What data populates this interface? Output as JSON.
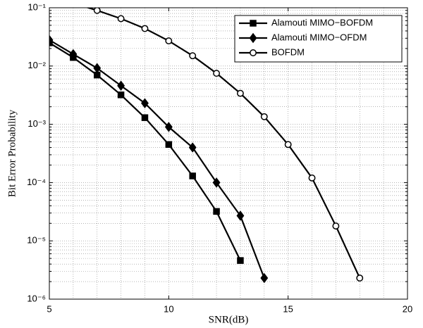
{
  "chart_data": {
    "type": "line",
    "log_y": true,
    "grid": true,
    "legend": "upper right",
    "xlabel": "SNR(dB)",
    "ylabel": "Bit Error Probability",
    "xlim": [
      5,
      20
    ],
    "xticks": [
      5,
      10,
      15,
      20
    ],
    "ylim": [
      1e-06,
      0.1
    ],
    "yticks": [
      {
        "value": 0.1,
        "label": "10⁻¹"
      },
      {
        "value": 0.01,
        "label": "10⁻²"
      },
      {
        "value": 0.001,
        "label": "10⁻³"
      },
      {
        "value": 0.0001,
        "label": "10⁻⁴"
      },
      {
        "value": 1e-05,
        "label": "10⁻⁵"
      },
      {
        "value": 1e-06,
        "label": "10⁻⁶"
      }
    ],
    "series": [
      {
        "name": "Alamouti MIMO−BOFDM",
        "color": "#000000",
        "marker": "square",
        "x": [
          5,
          6,
          7,
          8,
          9,
          10,
          11,
          12,
          13
        ],
        "values": [
          0.025,
          0.014,
          0.007,
          0.0032,
          0.0013,
          0.00045,
          0.00013,
          3.2e-05,
          4.6e-06
        ]
      },
      {
        "name": "Alamouti MIMO−OFDM",
        "color": "#000000",
        "marker": "diamond",
        "x": [
          5,
          6,
          7,
          8,
          9,
          10,
          11,
          12,
          13,
          14
        ],
        "values": [
          0.028,
          0.016,
          0.0092,
          0.0046,
          0.0023,
          0.0009,
          0.0004,
          0.0001,
          2.7e-05,
          2.3e-06
        ]
      },
      {
        "name": "BOFDM",
        "color": "#000000",
        "marker": "circle",
        "x": [
          6,
          7,
          8,
          9,
          10,
          11,
          12,
          13,
          14,
          15,
          16,
          17,
          18
        ],
        "values": [
          0.12,
          0.09,
          0.065,
          0.044,
          0.027,
          0.015,
          0.0075,
          0.0034,
          0.00135,
          0.00045,
          0.00012,
          1.8e-05,
          2.3e-06
        ]
      }
    ]
  }
}
